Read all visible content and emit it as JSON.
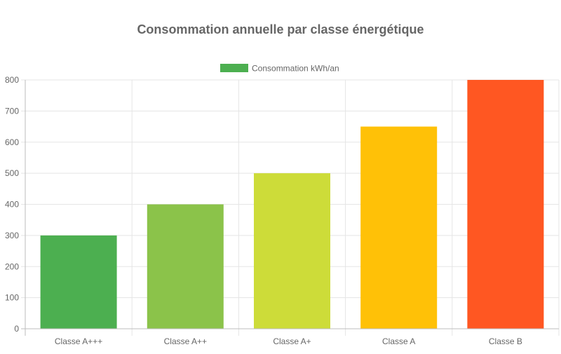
{
  "chart_data": {
    "type": "bar",
    "title": "Consommation annuelle par classe énergétique",
    "categories": [
      "Classe A+++",
      "Classe A++",
      "Classe A+",
      "Classe A",
      "Classe B"
    ],
    "series": [
      {
        "name": "Consommation kWh/an",
        "values": [
          300,
          400,
          500,
          650,
          800
        ],
        "colors": [
          "#4caf50",
          "#8bc34a",
          "#cddc39",
          "#ffc107",
          "#ff5722"
        ]
      }
    ],
    "legend_color": "#4caf50",
    "ylim": [
      0,
      800
    ],
    "yticks": [
      "0",
      "100",
      "200",
      "300",
      "400",
      "500",
      "600",
      "700",
      "800"
    ],
    "grid": true,
    "legend_position": "top-center"
  }
}
